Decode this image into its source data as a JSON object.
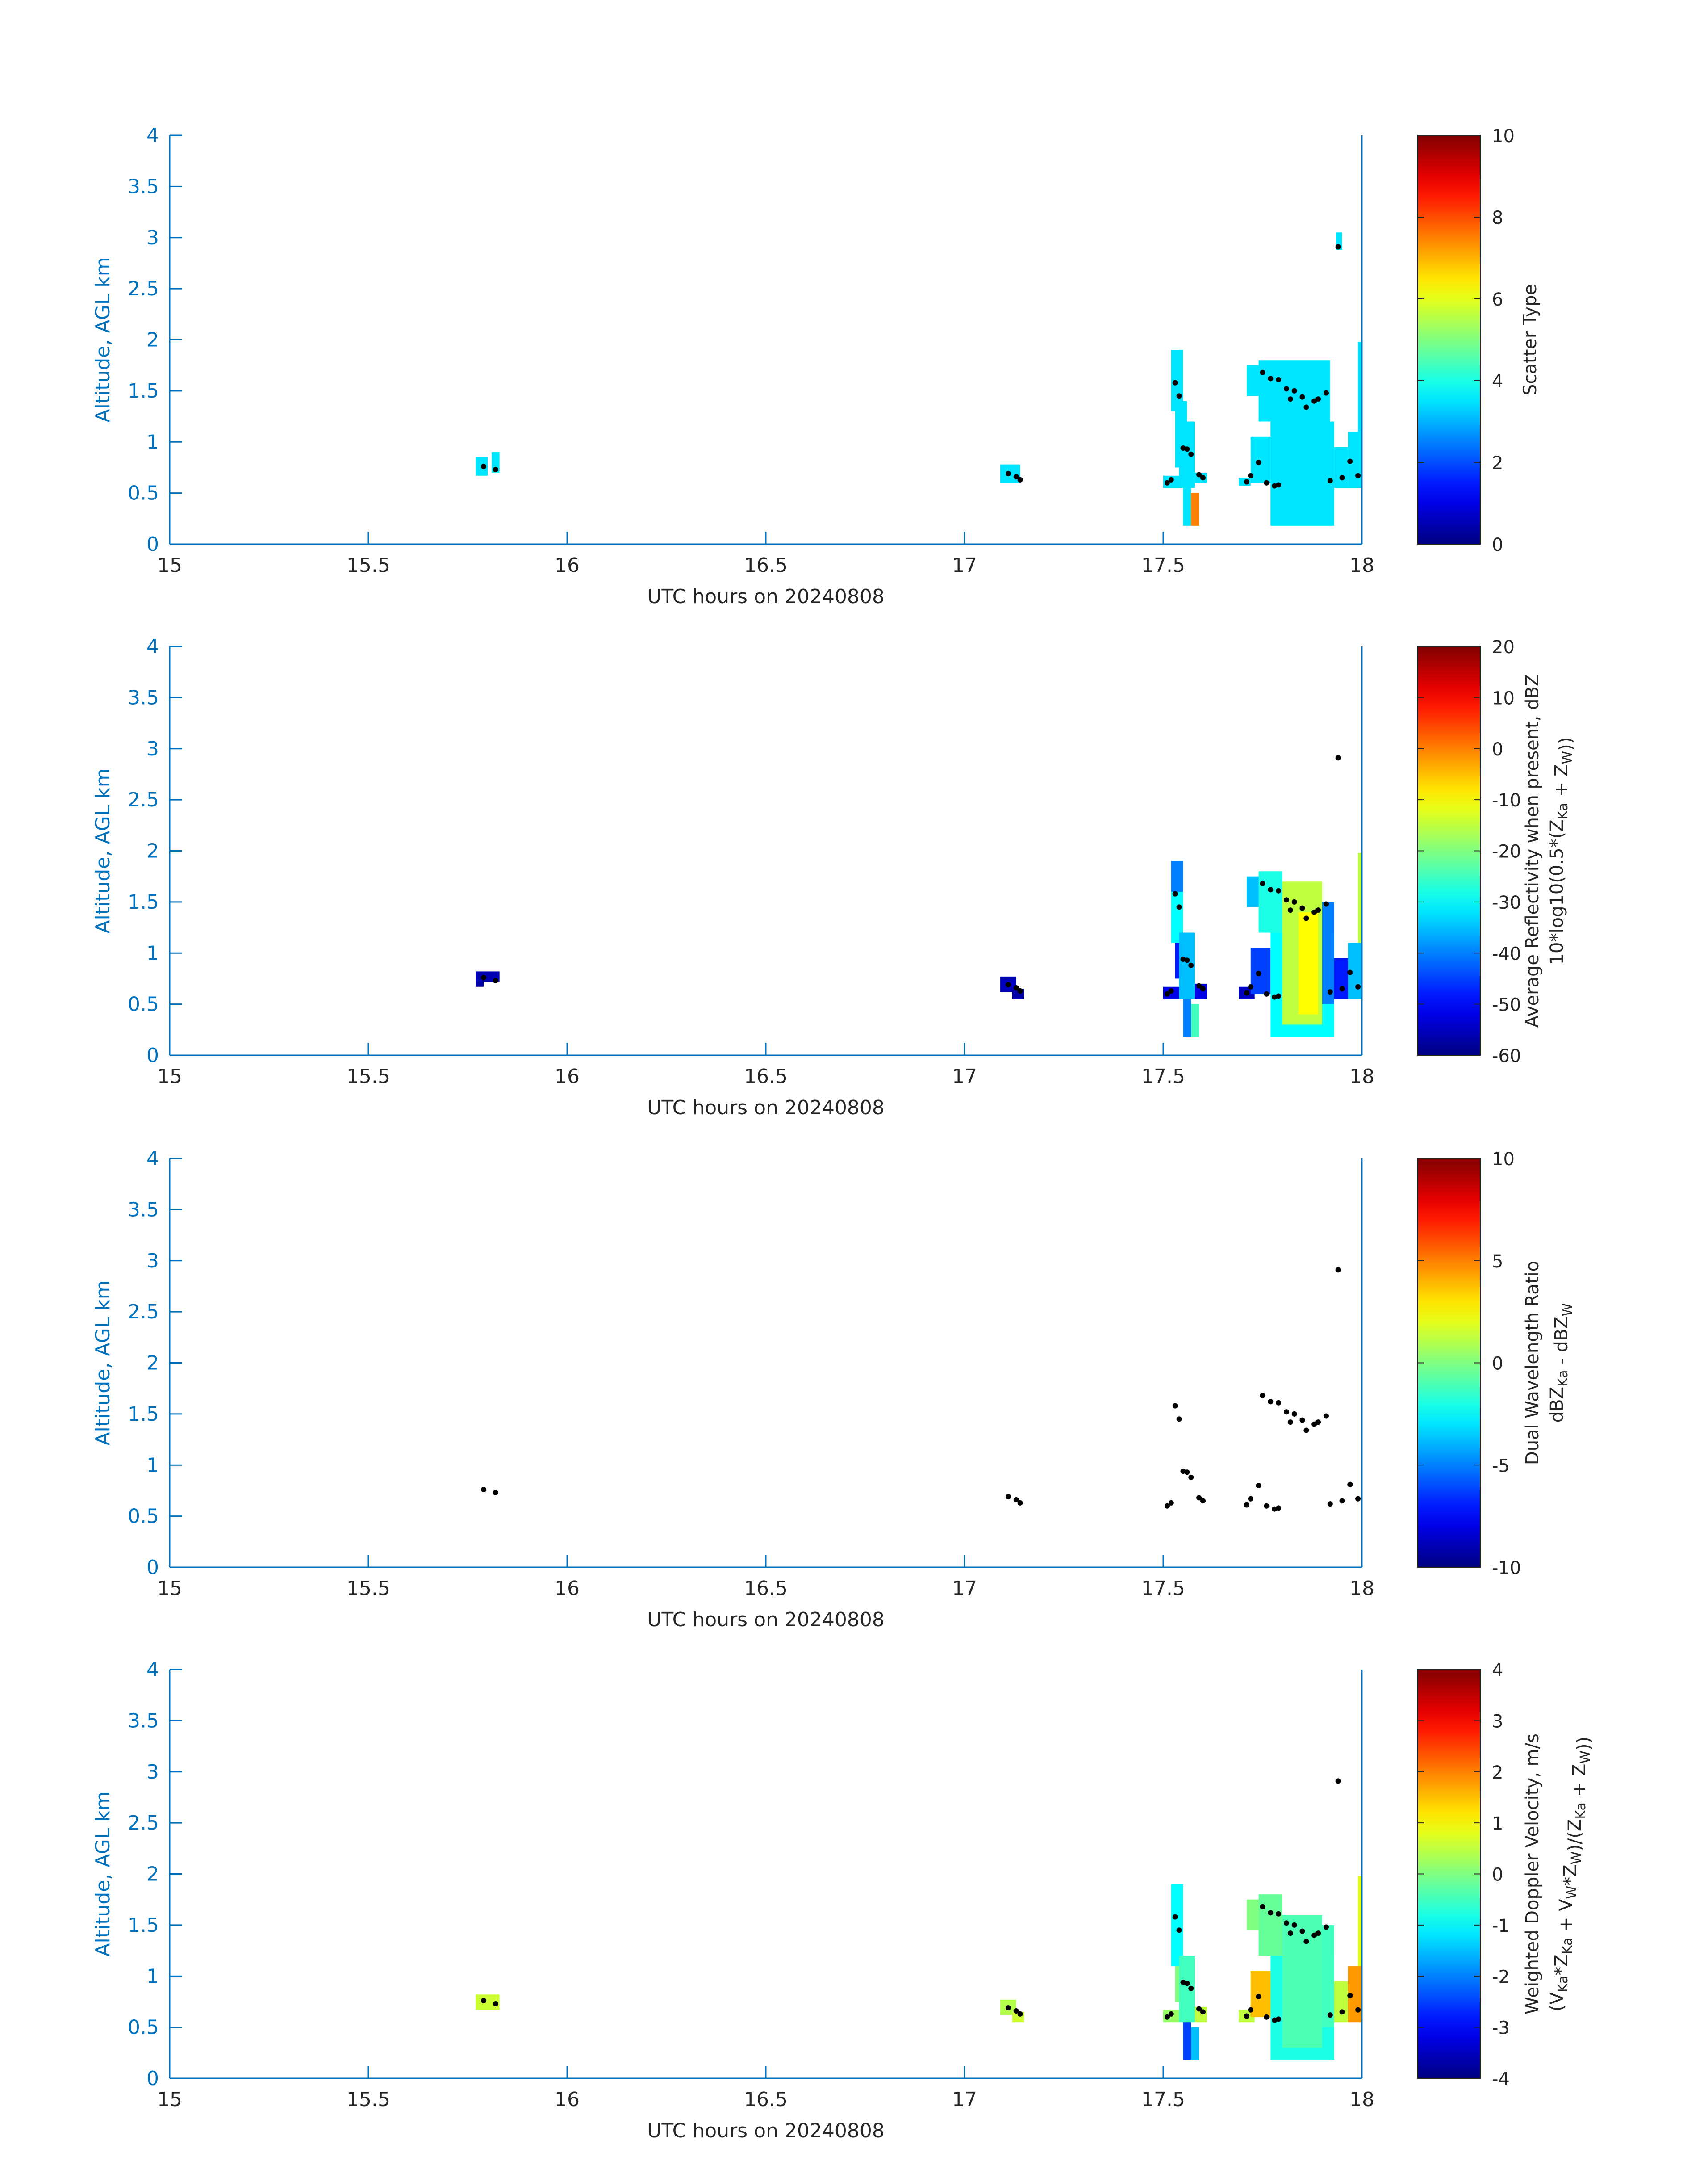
{
  "chart_data": [
    {
      "type": "heatmap",
      "xlabel": "UTC hours on 20240808",
      "ylabel": "Altitude, AGL km",
      "xlim": [
        15,
        18
      ],
      "ylim": [
        0,
        4
      ],
      "xticks": [
        "15",
        "15.5",
        "16",
        "16.5",
        "17",
        "17.5",
        "18"
      ],
      "yticks": [
        "0",
        "0.5",
        "1",
        "1.5",
        "2",
        "2.5",
        "3",
        "3.5",
        "4"
      ],
      "colorbar": {
        "label_lines": [
          {
            "text": "Scatter Type"
          }
        ],
        "range": [
          0,
          10
        ],
        "ticks": [
          "0",
          "2",
          "4",
          "6",
          "8",
          "10"
        ]
      },
      "cells": [
        [
          15.77,
          15.8,
          0.67,
          0.85,
          3.5
        ],
        [
          15.81,
          15.83,
          0.7,
          0.9,
          3.5
        ],
        [
          17.09,
          17.14,
          0.6,
          0.78,
          3.5
        ],
        [
          17.5,
          17.54,
          0.55,
          0.67,
          3.5
        ],
        [
          17.52,
          17.55,
          1.3,
          1.9,
          3.5
        ],
        [
          17.53,
          17.56,
          0.75,
          1.4,
          3.5
        ],
        [
          17.54,
          17.58,
          0.55,
          1.2,
          3.5
        ],
        [
          17.55,
          17.57,
          0.18,
          0.55,
          3.5
        ],
        [
          17.57,
          17.59,
          0.18,
          0.5,
          7.5
        ],
        [
          17.58,
          17.61,
          0.6,
          0.7,
          3.5
        ],
        [
          17.69,
          17.72,
          0.57,
          0.65,
          3.5
        ],
        [
          17.72,
          17.77,
          0.6,
          1.05,
          3.5
        ],
        [
          17.71,
          17.78,
          1.45,
          1.75,
          3.5
        ],
        [
          17.77,
          17.93,
          0.18,
          1.2,
          3.5
        ],
        [
          17.74,
          17.92,
          1.2,
          1.8,
          3.5
        ],
        [
          17.93,
          17.965,
          0.55,
          0.95,
          3.5
        ],
        [
          17.965,
          18.0,
          0.55,
          1.1,
          3.5
        ],
        [
          17.99,
          18.0,
          1.1,
          1.98,
          3.5
        ],
        [
          17.935,
          17.95,
          2.88,
          3.05,
          3.5
        ]
      ],
      "points": [
        [
          15.79,
          0.76
        ],
        [
          15.82,
          0.73
        ],
        [
          17.11,
          0.69
        ],
        [
          17.13,
          0.66
        ],
        [
          17.14,
          0.63
        ],
        [
          17.51,
          0.6
        ],
        [
          17.52,
          0.63
        ],
        [
          17.53,
          1.58
        ],
        [
          17.54,
          1.45
        ],
        [
          17.55,
          0.94
        ],
        [
          17.56,
          0.93
        ],
        [
          17.57,
          0.88
        ],
        [
          17.59,
          0.68
        ],
        [
          17.6,
          0.65
        ],
        [
          17.71,
          0.61
        ],
        [
          17.72,
          0.67
        ],
        [
          17.74,
          0.8
        ],
        [
          17.75,
          1.68
        ],
        [
          17.76,
          0.6
        ],
        [
          17.77,
          1.62
        ],
        [
          17.78,
          0.57
        ],
        [
          17.79,
          1.61
        ],
        [
          17.79,
          0.58
        ],
        [
          17.81,
          1.52
        ],
        [
          17.82,
          1.42
        ],
        [
          17.83,
          1.5
        ],
        [
          17.85,
          1.44
        ],
        [
          17.86,
          1.34
        ],
        [
          17.88,
          1.4
        ],
        [
          17.89,
          1.42
        ],
        [
          17.91,
          1.48
        ],
        [
          17.92,
          0.62
        ],
        [
          17.94,
          2.91
        ],
        [
          17.95,
          0.65
        ],
        [
          17.97,
          0.81
        ],
        [
          17.99,
          0.67
        ]
      ]
    },
    {
      "type": "heatmap",
      "xlabel": "UTC hours on 20240808",
      "ylabel": "Altitude, AGL km",
      "xlim": [
        15,
        18
      ],
      "ylim": [
        0,
        4
      ],
      "xticks": [
        "15",
        "15.5",
        "16",
        "16.5",
        "17",
        "17.5",
        "18"
      ],
      "yticks": [
        "0",
        "0.5",
        "1",
        "1.5",
        "2",
        "2.5",
        "3",
        "3.5",
        "4"
      ],
      "colorbar": {
        "label_lines": [
          {
            "text": "Average Reflectivity when present, dBZ"
          },
          {
            "text": "10*log10(0.5*(Z",
            "sub1": "Ka",
            "mid": " + Z",
            "sub2": "W",
            "tail": "))"
          }
        ],
        "range": [
          -60,
          20
        ],
        "ticks": [
          "-60",
          "-50",
          "-40",
          "-30",
          "-20",
          "-10",
          "0",
          "10",
          "20"
        ]
      },
      "cells": [
        [
          15.77,
          15.83,
          0.72,
          0.82,
          -56
        ],
        [
          15.77,
          15.79,
          0.67,
          0.72,
          -57
        ],
        [
          17.09,
          17.13,
          0.62,
          0.77,
          -55
        ],
        [
          17.12,
          17.15,
          0.55,
          0.65,
          -57
        ],
        [
          17.5,
          17.54,
          0.55,
          0.67,
          -52
        ],
        [
          17.52,
          17.55,
          1.6,
          1.9,
          -40
        ],
        [
          17.52,
          17.55,
          1.1,
          1.6,
          -30
        ],
        [
          17.53,
          17.56,
          0.75,
          1.1,
          -48
        ],
        [
          17.54,
          17.58,
          0.55,
          1.2,
          -35
        ],
        [
          17.55,
          17.57,
          0.18,
          0.55,
          -40
        ],
        [
          17.57,
          17.59,
          0.18,
          0.5,
          -25
        ],
        [
          17.58,
          17.61,
          0.55,
          0.7,
          -52
        ],
        [
          17.69,
          17.73,
          0.55,
          0.67,
          -55
        ],
        [
          17.72,
          17.77,
          0.6,
          1.05,
          -45
        ],
        [
          17.71,
          17.78,
          1.45,
          1.75,
          -35
        ],
        [
          17.74,
          17.8,
          1.2,
          1.8,
          -28
        ],
        [
          17.77,
          17.93,
          0.18,
          1.2,
          -30
        ],
        [
          17.8,
          17.9,
          0.3,
          1.7,
          -15
        ],
        [
          17.84,
          17.89,
          0.4,
          1.4,
          -10
        ],
        [
          17.9,
          17.93,
          0.5,
          1.5,
          -40
        ],
        [
          17.93,
          17.965,
          0.55,
          0.95,
          -48
        ],
        [
          17.965,
          18.0,
          0.55,
          1.1,
          -35
        ],
        [
          17.99,
          18.0,
          1.1,
          1.98,
          -15
        ]
      ],
      "points": [
        [
          15.79,
          0.76
        ],
        [
          15.82,
          0.73
        ],
        [
          17.11,
          0.69
        ],
        [
          17.13,
          0.66
        ],
        [
          17.14,
          0.63
        ],
        [
          17.51,
          0.6
        ],
        [
          17.52,
          0.63
        ],
        [
          17.53,
          1.58
        ],
        [
          17.54,
          1.45
        ],
        [
          17.55,
          0.94
        ],
        [
          17.56,
          0.93
        ],
        [
          17.57,
          0.88
        ],
        [
          17.59,
          0.68
        ],
        [
          17.6,
          0.65
        ],
        [
          17.71,
          0.61
        ],
        [
          17.72,
          0.67
        ],
        [
          17.74,
          0.8
        ],
        [
          17.75,
          1.68
        ],
        [
          17.76,
          0.6
        ],
        [
          17.77,
          1.62
        ],
        [
          17.78,
          0.57
        ],
        [
          17.79,
          1.61
        ],
        [
          17.79,
          0.58
        ],
        [
          17.81,
          1.52
        ],
        [
          17.82,
          1.42
        ],
        [
          17.83,
          1.5
        ],
        [
          17.85,
          1.44
        ],
        [
          17.86,
          1.34
        ],
        [
          17.88,
          1.4
        ],
        [
          17.89,
          1.42
        ],
        [
          17.91,
          1.48
        ],
        [
          17.92,
          0.62
        ],
        [
          17.94,
          2.91
        ],
        [
          17.95,
          0.65
        ],
        [
          17.97,
          0.81
        ],
        [
          17.99,
          0.67
        ]
      ]
    },
    {
      "type": "heatmap",
      "xlabel": "UTC hours on 20240808",
      "ylabel": "Altitude, AGL km",
      "xlim": [
        15,
        18
      ],
      "ylim": [
        0,
        4
      ],
      "xticks": [
        "15",
        "15.5",
        "16",
        "16.5",
        "17",
        "17.5",
        "18"
      ],
      "yticks": [
        "0",
        "0.5",
        "1",
        "1.5",
        "2",
        "2.5",
        "3",
        "3.5",
        "4"
      ],
      "colorbar": {
        "label_lines": [
          {
            "text": "Dual Wavelength Ratio"
          },
          {
            "text": "dBZ",
            "sub1": "Ka",
            "mid": " - dBZ",
            "sub2": "W",
            "tail": ""
          }
        ],
        "range": [
          -10,
          10
        ],
        "ticks": [
          "-10",
          "-5",
          "0",
          "5",
          "10"
        ]
      },
      "cells": [],
      "points": [
        [
          15.79,
          0.76
        ],
        [
          15.82,
          0.73
        ],
        [
          17.11,
          0.69
        ],
        [
          17.13,
          0.66
        ],
        [
          17.14,
          0.63
        ],
        [
          17.51,
          0.6
        ],
        [
          17.52,
          0.63
        ],
        [
          17.53,
          1.58
        ],
        [
          17.54,
          1.45
        ],
        [
          17.55,
          0.94
        ],
        [
          17.56,
          0.93
        ],
        [
          17.57,
          0.88
        ],
        [
          17.59,
          0.68
        ],
        [
          17.6,
          0.65
        ],
        [
          17.71,
          0.61
        ],
        [
          17.72,
          0.67
        ],
        [
          17.74,
          0.8
        ],
        [
          17.75,
          1.68
        ],
        [
          17.76,
          0.6
        ],
        [
          17.77,
          1.62
        ],
        [
          17.78,
          0.57
        ],
        [
          17.79,
          1.61
        ],
        [
          17.79,
          0.58
        ],
        [
          17.81,
          1.52
        ],
        [
          17.82,
          1.42
        ],
        [
          17.83,
          1.5
        ],
        [
          17.85,
          1.44
        ],
        [
          17.86,
          1.34
        ],
        [
          17.88,
          1.4
        ],
        [
          17.89,
          1.42
        ],
        [
          17.91,
          1.48
        ],
        [
          17.92,
          0.62
        ],
        [
          17.94,
          2.91
        ],
        [
          17.95,
          0.65
        ],
        [
          17.97,
          0.81
        ],
        [
          17.99,
          0.67
        ]
      ]
    },
    {
      "type": "heatmap",
      "xlabel": "UTC hours on 20240808",
      "ylabel": "Altitude, AGL km",
      "xlim": [
        15,
        18
      ],
      "ylim": [
        0,
        4
      ],
      "xticks": [
        "15",
        "15.5",
        "16",
        "16.5",
        "17",
        "17.5",
        "18"
      ],
      "yticks": [
        "0",
        "0.5",
        "1",
        "1.5",
        "2",
        "2.5",
        "3",
        "3.5",
        "4"
      ],
      "colorbar": {
        "label_lines": [
          {
            "text": "Weighted Doppler Velocity, m/s"
          },
          {
            "text": "(V",
            "parts": [
              [
                "Ka",
                "*Z"
              ],
              [
                "Ka",
                " + V"
              ],
              [
                "W",
                "*Z"
              ],
              [
                "W",
                ")/(Z"
              ],
              [
                "Ka",
                " + Z"
              ],
              [
                "W",
                "))"
              ]
            ]
          }
        ],
        "range": [
          -4,
          4
        ],
        "ticks": [
          "-4",
          "-3",
          "-2",
          "-1",
          "0",
          "1",
          "2",
          "3",
          "4"
        ]
      },
      "cells": [
        [
          15.77,
          15.83,
          0.67,
          0.82,
          0.6
        ],
        [
          17.09,
          17.13,
          0.62,
          0.77,
          0.4
        ],
        [
          17.12,
          17.15,
          0.55,
          0.65,
          0.6
        ],
        [
          17.5,
          17.54,
          0.55,
          0.67,
          0.2
        ],
        [
          17.52,
          17.55,
          1.1,
          1.9,
          -1.0
        ],
        [
          17.53,
          17.56,
          0.75,
          1.1,
          0.0
        ],
        [
          17.54,
          17.58,
          0.55,
          1.2,
          -0.5
        ],
        [
          17.55,
          17.57,
          0.18,
          0.55,
          -2.5
        ],
        [
          17.57,
          17.59,
          0.18,
          0.5,
          -1.5
        ],
        [
          17.58,
          17.61,
          0.55,
          0.7,
          0.5
        ],
        [
          17.69,
          17.73,
          0.55,
          0.67,
          0.5
        ],
        [
          17.72,
          17.77,
          0.6,
          1.05,
          1.5
        ],
        [
          17.71,
          17.78,
          1.45,
          1.75,
          0.0
        ],
        [
          17.74,
          17.8,
          1.2,
          1.8,
          -0.2
        ],
        [
          17.77,
          17.93,
          0.18,
          1.2,
          -0.8
        ],
        [
          17.8,
          17.9,
          0.3,
          1.6,
          -0.4
        ],
        [
          17.9,
          17.93,
          0.5,
          1.5,
          -0.5
        ],
        [
          17.93,
          17.965,
          0.55,
          0.95,
          0.5
        ],
        [
          17.965,
          18.0,
          0.55,
          1.1,
          1.8
        ],
        [
          17.99,
          18.0,
          1.1,
          1.98,
          0.8
        ]
      ],
      "points": [
        [
          15.79,
          0.76
        ],
        [
          15.82,
          0.73
        ],
        [
          17.11,
          0.69
        ],
        [
          17.13,
          0.66
        ],
        [
          17.14,
          0.63
        ],
        [
          17.51,
          0.6
        ],
        [
          17.52,
          0.63
        ],
        [
          17.53,
          1.58
        ],
        [
          17.54,
          1.45
        ],
        [
          17.55,
          0.94
        ],
        [
          17.56,
          0.93
        ],
        [
          17.57,
          0.88
        ],
        [
          17.59,
          0.68
        ],
        [
          17.6,
          0.65
        ],
        [
          17.71,
          0.61
        ],
        [
          17.72,
          0.67
        ],
        [
          17.74,
          0.8
        ],
        [
          17.75,
          1.68
        ],
        [
          17.76,
          0.6
        ],
        [
          17.77,
          1.62
        ],
        [
          17.78,
          0.57
        ],
        [
          17.79,
          1.61
        ],
        [
          17.79,
          0.58
        ],
        [
          17.81,
          1.52
        ],
        [
          17.82,
          1.42
        ],
        [
          17.83,
          1.5
        ],
        [
          17.85,
          1.44
        ],
        [
          17.86,
          1.34
        ],
        [
          17.88,
          1.4
        ],
        [
          17.89,
          1.42
        ],
        [
          17.91,
          1.48
        ],
        [
          17.92,
          0.62
        ],
        [
          17.94,
          2.91
        ],
        [
          17.95,
          0.65
        ],
        [
          17.97,
          0.81
        ],
        [
          17.99,
          0.67
        ]
      ]
    }
  ],
  "colors": {
    "axis": "#0072BD",
    "label": "#262626",
    "points": "#000000"
  }
}
